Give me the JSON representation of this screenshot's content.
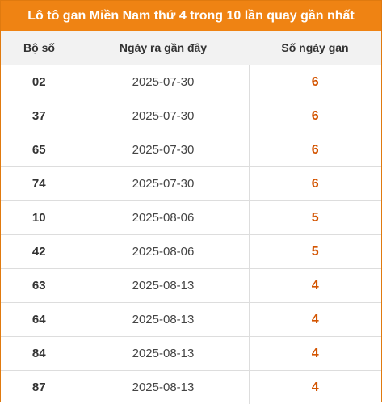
{
  "title": "Lô tô gan Miền Nam thứ 4 trong 10 lần quay gần nhất",
  "colors": {
    "title_background": "#ef8313",
    "gan_value": "#d35400",
    "border": "#e07a0f"
  },
  "table": {
    "headers": [
      "Bộ số",
      "Ngày ra gần đây",
      "Số ngày gan"
    ],
    "rows": [
      {
        "so": "02",
        "ngay": "2025-07-30",
        "gan": "6"
      },
      {
        "so": "37",
        "ngay": "2025-07-30",
        "gan": "6"
      },
      {
        "so": "65",
        "ngay": "2025-07-30",
        "gan": "6"
      },
      {
        "so": "74",
        "ngay": "2025-07-30",
        "gan": "6"
      },
      {
        "so": "10",
        "ngay": "2025-08-06",
        "gan": "5"
      },
      {
        "so": "42",
        "ngay": "2025-08-06",
        "gan": "5"
      },
      {
        "so": "63",
        "ngay": "2025-08-13",
        "gan": "4"
      },
      {
        "so": "64",
        "ngay": "2025-08-13",
        "gan": "4"
      },
      {
        "so": "84",
        "ngay": "2025-08-13",
        "gan": "4"
      },
      {
        "so": "87",
        "ngay": "2025-08-13",
        "gan": "4"
      }
    ]
  }
}
